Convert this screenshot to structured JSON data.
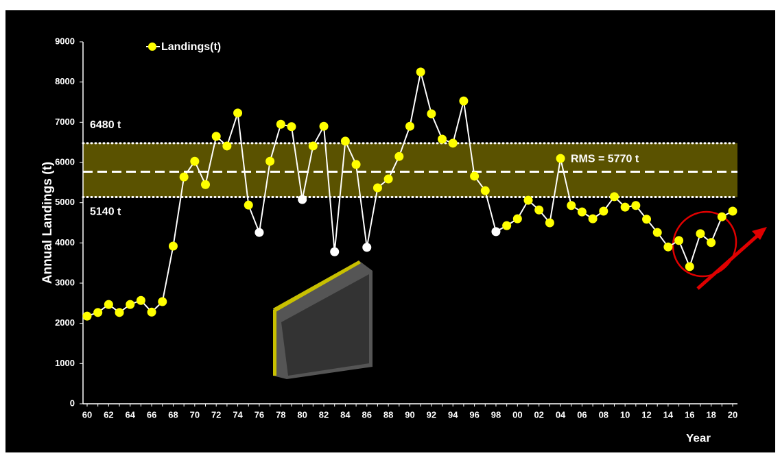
{
  "chart_data": {
    "type": "line",
    "y_label": "Annual Landings  (t)",
    "x_label": "Year",
    "categories": [
      "60",
      null,
      "62",
      null,
      "64",
      null,
      "66",
      null,
      "68",
      null,
      "70",
      null,
      "72",
      null,
      "74",
      null,
      "76",
      null,
      "78",
      null,
      "80",
      null,
      "82",
      null,
      "84",
      null,
      "86",
      null,
      "88",
      null,
      "90",
      null,
      "92",
      null,
      "94",
      null,
      "96",
      null,
      "98",
      null,
      "00",
      null,
      "02",
      null,
      "04",
      null,
      "06",
      null,
      "08",
      null,
      "10",
      null,
      "12",
      null,
      "14",
      null,
      "16",
      null,
      "18",
      null,
      "20"
    ],
    "series": [
      {
        "name": "Landings(t)",
        "color": "#ffff00",
        "values": [
          2180,
          2270,
          2470,
          2270,
          2470,
          2570,
          2280,
          2540,
          3920,
          5640,
          6030,
          5450,
          6650,
          6410,
          7230,
          4940,
          4260,
          6030,
          6950,
          6890,
          5080,
          6410,
          6900,
          3780,
          6530,
          5950,
          3890,
          5370,
          5590,
          6150,
          6900,
          8250,
          7210,
          6580,
          6480,
          7530,
          5660,
          5300,
          4280,
          4430,
          4600,
          5060,
          4820,
          4500,
          6100,
          4930,
          4770,
          4600,
          4790,
          5150,
          4890,
          4930,
          4590,
          4260,
          3900,
          4060,
          3410,
          4230,
          4010,
          4650,
          4790
        ]
      }
    ],
    "white_markers": [
      16,
      20,
      23,
      26,
      38
    ],
    "ylim": [
      0,
      9000
    ],
    "yticks": [
      0,
      1000,
      2000,
      3000,
      4000,
      5000,
      6000,
      7000,
      8000,
      9000
    ],
    "band": {
      "low": 5140,
      "high": 6480,
      "mean": 5770,
      "color": "#5a5200"
    },
    "annotations": {
      "high_label": "6480 t",
      "low_label": "5140 t",
      "mean_label": "RMS = 5770 t"
    },
    "legend": "top-left"
  }
}
